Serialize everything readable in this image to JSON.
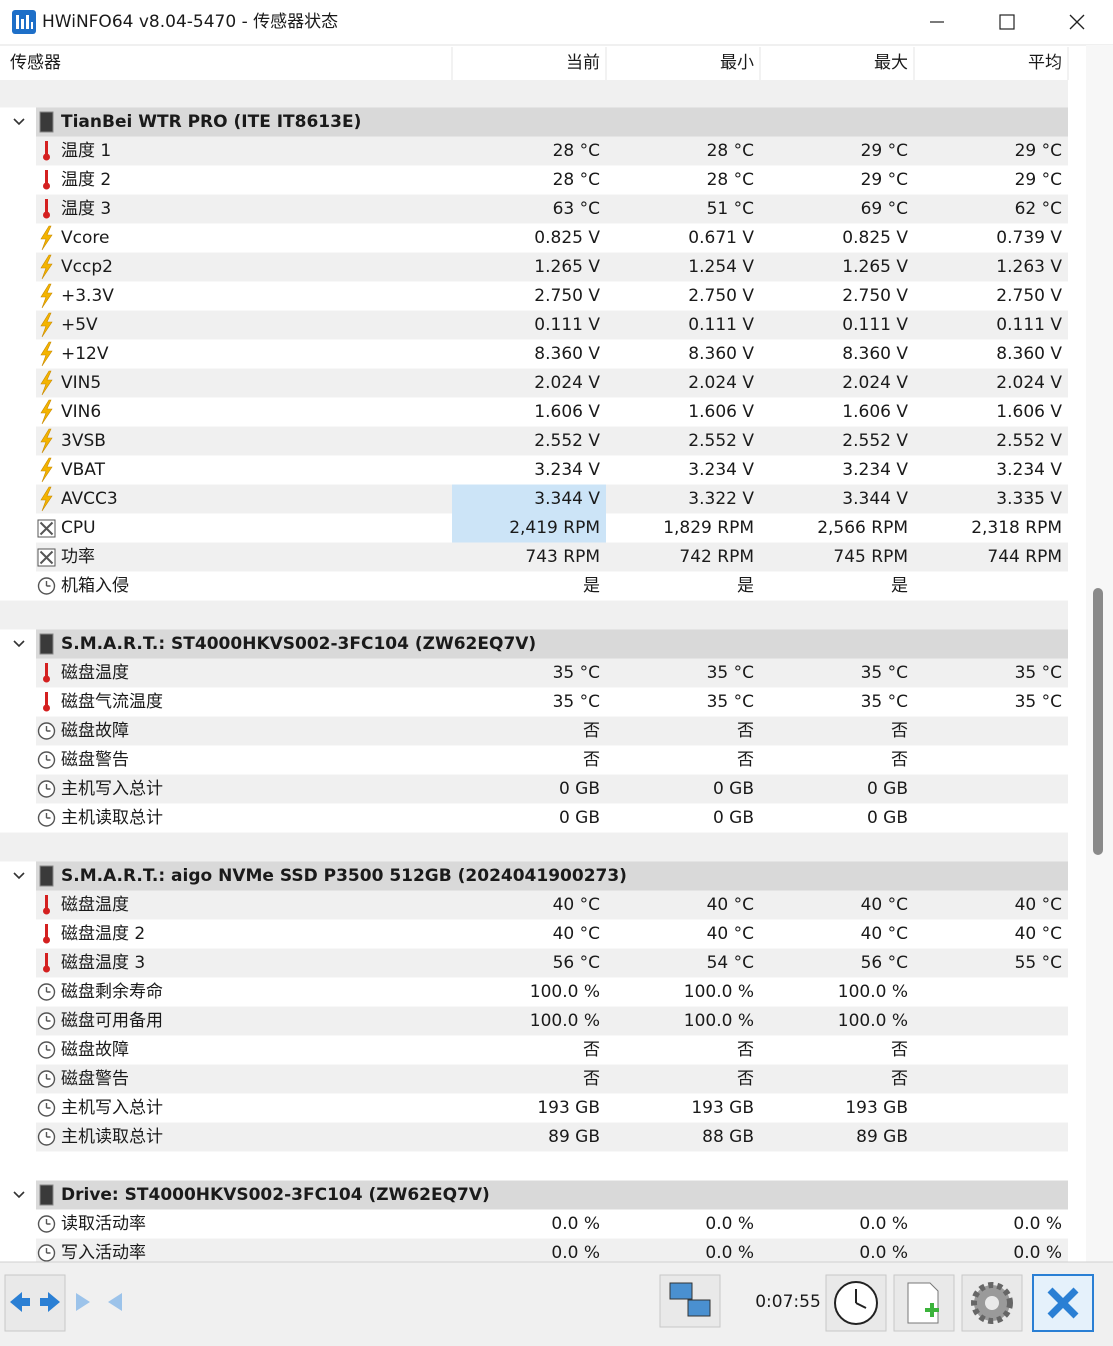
{
  "window": {
    "title": "HWiNFO64 v8.04-5470 - 传感器状态"
  },
  "columns": [
    "传感器",
    "当前",
    "最小",
    "最大",
    "平均"
  ],
  "groups": [
    {
      "name": "TianBei WTR PRO (ITE IT8613E)",
      "rows": [
        {
          "label": "温度 1",
          "icon": "thermometer",
          "values": [
            "28 °C",
            "28 °C",
            "29 °C",
            "29 °C"
          ]
        },
        {
          "label": "温度 2",
          "icon": "thermometer",
          "values": [
            "28 °C",
            "28 °C",
            "29 °C",
            "29 °C"
          ]
        },
        {
          "label": "温度 3",
          "icon": "thermometer",
          "values": [
            "63 °C",
            "51 °C",
            "69 °C",
            "62 °C"
          ]
        },
        {
          "label": "Vcore",
          "icon": "bolt",
          "values": [
            "0.825 V",
            "0.671 V",
            "0.825 V",
            "0.739 V"
          ]
        },
        {
          "label": "Vccp2",
          "icon": "bolt",
          "values": [
            "1.265 V",
            "1.254 V",
            "1.265 V",
            "1.263 V"
          ]
        },
        {
          "label": "+3.3V",
          "icon": "bolt",
          "values": [
            "2.750 V",
            "2.750 V",
            "2.750 V",
            "2.750 V"
          ]
        },
        {
          "label": "+5V",
          "icon": "bolt",
          "values": [
            "0.111 V",
            "0.111 V",
            "0.111 V",
            "0.111 V"
          ]
        },
        {
          "label": "+12V",
          "icon": "bolt",
          "values": [
            "8.360 V",
            "8.360 V",
            "8.360 V",
            "8.360 V"
          ]
        },
        {
          "label": "VIN5",
          "icon": "bolt",
          "values": [
            "2.024 V",
            "2.024 V",
            "2.024 V",
            "2.024 V"
          ]
        },
        {
          "label": "VIN6",
          "icon": "bolt",
          "values": [
            "1.606 V",
            "1.606 V",
            "1.606 V",
            "1.606 V"
          ]
        },
        {
          "label": "3VSB",
          "icon": "bolt",
          "values": [
            "2.552 V",
            "2.552 V",
            "2.552 V",
            "2.552 V"
          ]
        },
        {
          "label": "VBAT",
          "icon": "bolt",
          "values": [
            "3.234 V",
            "3.234 V",
            "3.234 V",
            "3.234 V"
          ]
        },
        {
          "label": "AVCC3",
          "icon": "bolt",
          "selected": true,
          "values": [
            "3.344 V",
            "3.322 V",
            "3.344 V",
            "3.335 V"
          ]
        },
        {
          "label": "CPU",
          "icon": "fan",
          "selected": true,
          "values": [
            "2,419 RPM",
            "1,829 RPM",
            "2,566 RPM",
            "2,318 RPM"
          ]
        },
        {
          "label": "功率",
          "icon": "fan",
          "values": [
            "743 RPM",
            "742 RPM",
            "745 RPM",
            "744 RPM"
          ]
        },
        {
          "label": "机箱入侵",
          "icon": "clock",
          "values": [
            "是",
            "是",
            "是",
            null
          ]
        }
      ]
    },
    {
      "name": "S.M.A.R.T.: ST4000HKVS002-3FC104 (ZW62EQ7V)",
      "rows": [
        {
          "label": "磁盘温度",
          "icon": "thermometer",
          "values": [
            "35 °C",
            "35 °C",
            "35 °C",
            "35 °C"
          ]
        },
        {
          "label": "磁盘气流温度",
          "icon": "thermometer",
          "values": [
            "35 °C",
            "35 °C",
            "35 °C",
            "35 °C"
          ]
        },
        {
          "label": "磁盘故障",
          "icon": "clock",
          "values": [
            "否",
            "否",
            "否",
            null
          ]
        },
        {
          "label": "磁盘警告",
          "icon": "clock",
          "values": [
            "否",
            "否",
            "否",
            null
          ]
        },
        {
          "label": "主机写入总计",
          "icon": "clock",
          "values": [
            "0 GB",
            "0 GB",
            "0 GB",
            null
          ]
        },
        {
          "label": "主机读取总计",
          "icon": "clock",
          "values": [
            "0 GB",
            "0 GB",
            "0 GB",
            null
          ]
        }
      ]
    },
    {
      "name": "S.M.A.R.T.: aigo NVMe SSD P3500 512GB (2024041900273)",
      "rows": [
        {
          "label": "磁盘温度",
          "icon": "thermometer",
          "values": [
            "40 °C",
            "40 °C",
            "40 °C",
            "40 °C"
          ]
        },
        {
          "label": "磁盘温度 2",
          "icon": "thermometer",
          "values": [
            "40 °C",
            "40 °C",
            "40 °C",
            "40 °C"
          ]
        },
        {
          "label": "磁盘温度 3",
          "icon": "thermometer",
          "values": [
            "56 °C",
            "54 °C",
            "56 °C",
            "55 °C"
          ]
        },
        {
          "label": "磁盘剩余寿命",
          "icon": "clock",
          "values": [
            "100.0 %",
            "100.0 %",
            "100.0 %",
            null
          ]
        },
        {
          "label": "磁盘可用备用",
          "icon": "clock",
          "values": [
            "100.0 %",
            "100.0 %",
            "100.0 %",
            null
          ]
        },
        {
          "label": "磁盘故障",
          "icon": "clock",
          "values": [
            "否",
            "否",
            "否",
            null
          ]
        },
        {
          "label": "磁盘警告",
          "icon": "clock",
          "values": [
            "否",
            "否",
            "否",
            null
          ]
        },
        {
          "label": "主机写入总计",
          "icon": "clock",
          "values": [
            "193 GB",
            "193 GB",
            "193 GB",
            null
          ]
        },
        {
          "label": "主机读取总计",
          "icon": "clock",
          "values": [
            "89 GB",
            "88 GB",
            "89 GB",
            null
          ]
        }
      ]
    },
    {
      "name": "Drive: ST4000HKVS002-3FC104 (ZW62EQ7V)",
      "rows": [
        {
          "label": "读取活动率",
          "icon": "clock",
          "values": [
            "0.0 %",
            "0.0 %",
            "0.0 %",
            "0.0 %"
          ]
        },
        {
          "label": "写入活动率",
          "icon": "clock",
          "values": [
            "0.0 %",
            "0.0 %",
            "0.0 %",
            "0.0 %"
          ]
        }
      ]
    }
  ],
  "status": {
    "elapsed": "0:07:55"
  }
}
